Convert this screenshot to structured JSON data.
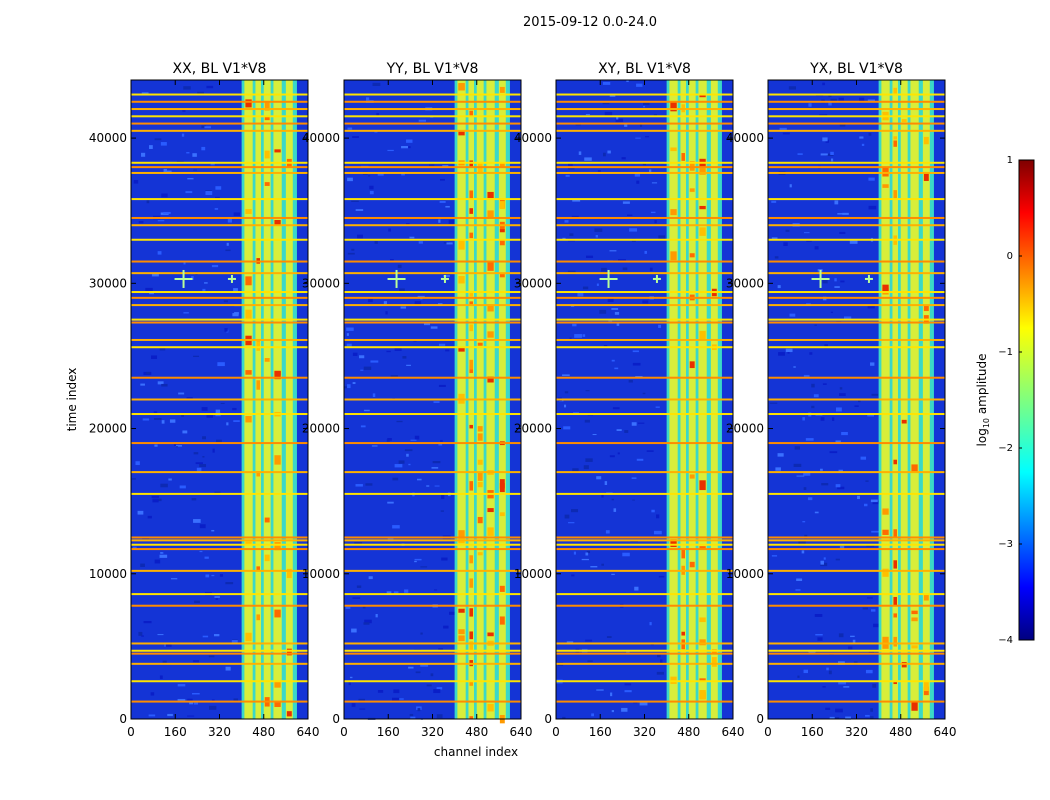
{
  "chart_data": {
    "type": "heatmap",
    "suptitle": "2015-09-12 0.0-24.0",
    "xlabel": "channel index",
    "ylabel": "time index",
    "xlim": [
      0,
      640
    ],
    "ylim": [
      0,
      44000
    ],
    "xticks": [
      0,
      160,
      320,
      480,
      640
    ],
    "yticks": [
      0,
      10000,
      20000,
      30000,
      40000
    ],
    "panels": [
      {
        "title": "XX, BL V1*V8",
        "show_ylabel": true
      },
      {
        "title": "YY, BL V1*V8",
        "show_ylabel": false
      },
      {
        "title": "XY, BL V1*V8",
        "show_ylabel": false
      },
      {
        "title": "YX, BL V1*V8",
        "show_ylabel": false
      }
    ],
    "rfi_band": {
      "channel_start": 400,
      "channel_end": 600
    },
    "sub_bands": [
      [
        410,
        440
      ],
      [
        450,
        470
      ],
      [
        480,
        505
      ],
      [
        515,
        545
      ],
      [
        560,
        585
      ]
    ],
    "source_channels": [
      190,
      365
    ],
    "source_time": 30300,
    "flagged_rows_time": [
      1200,
      2600,
      3800,
      4500,
      4700,
      5200,
      7800,
      8600,
      10200,
      11700,
      12000,
      12300,
      12500,
      15500,
      17000,
      19000,
      21000,
      22000,
      23500,
      25600,
      26100,
      27300,
      27500,
      28500,
      29000,
      29400,
      30700,
      31500,
      33000,
      34000,
      34500,
      35800,
      37600,
      38000,
      38300,
      40500,
      41000,
      41500,
      42000,
      42500,
      43000
    ],
    "colorbar": {
      "label": "log10 amplitude",
      "label_prefix": "log",
      "label_sub": "10",
      "label_suffix": " amplitude",
      "range": [
        -4,
        1
      ],
      "ticks": [
        1,
        0,
        -1,
        -2,
        -3,
        -4
      ],
      "tick_labels": [
        "1",
        "0",
        "−1",
        "−2",
        "−3",
        "−4"
      ],
      "colormap": "jet"
    }
  }
}
